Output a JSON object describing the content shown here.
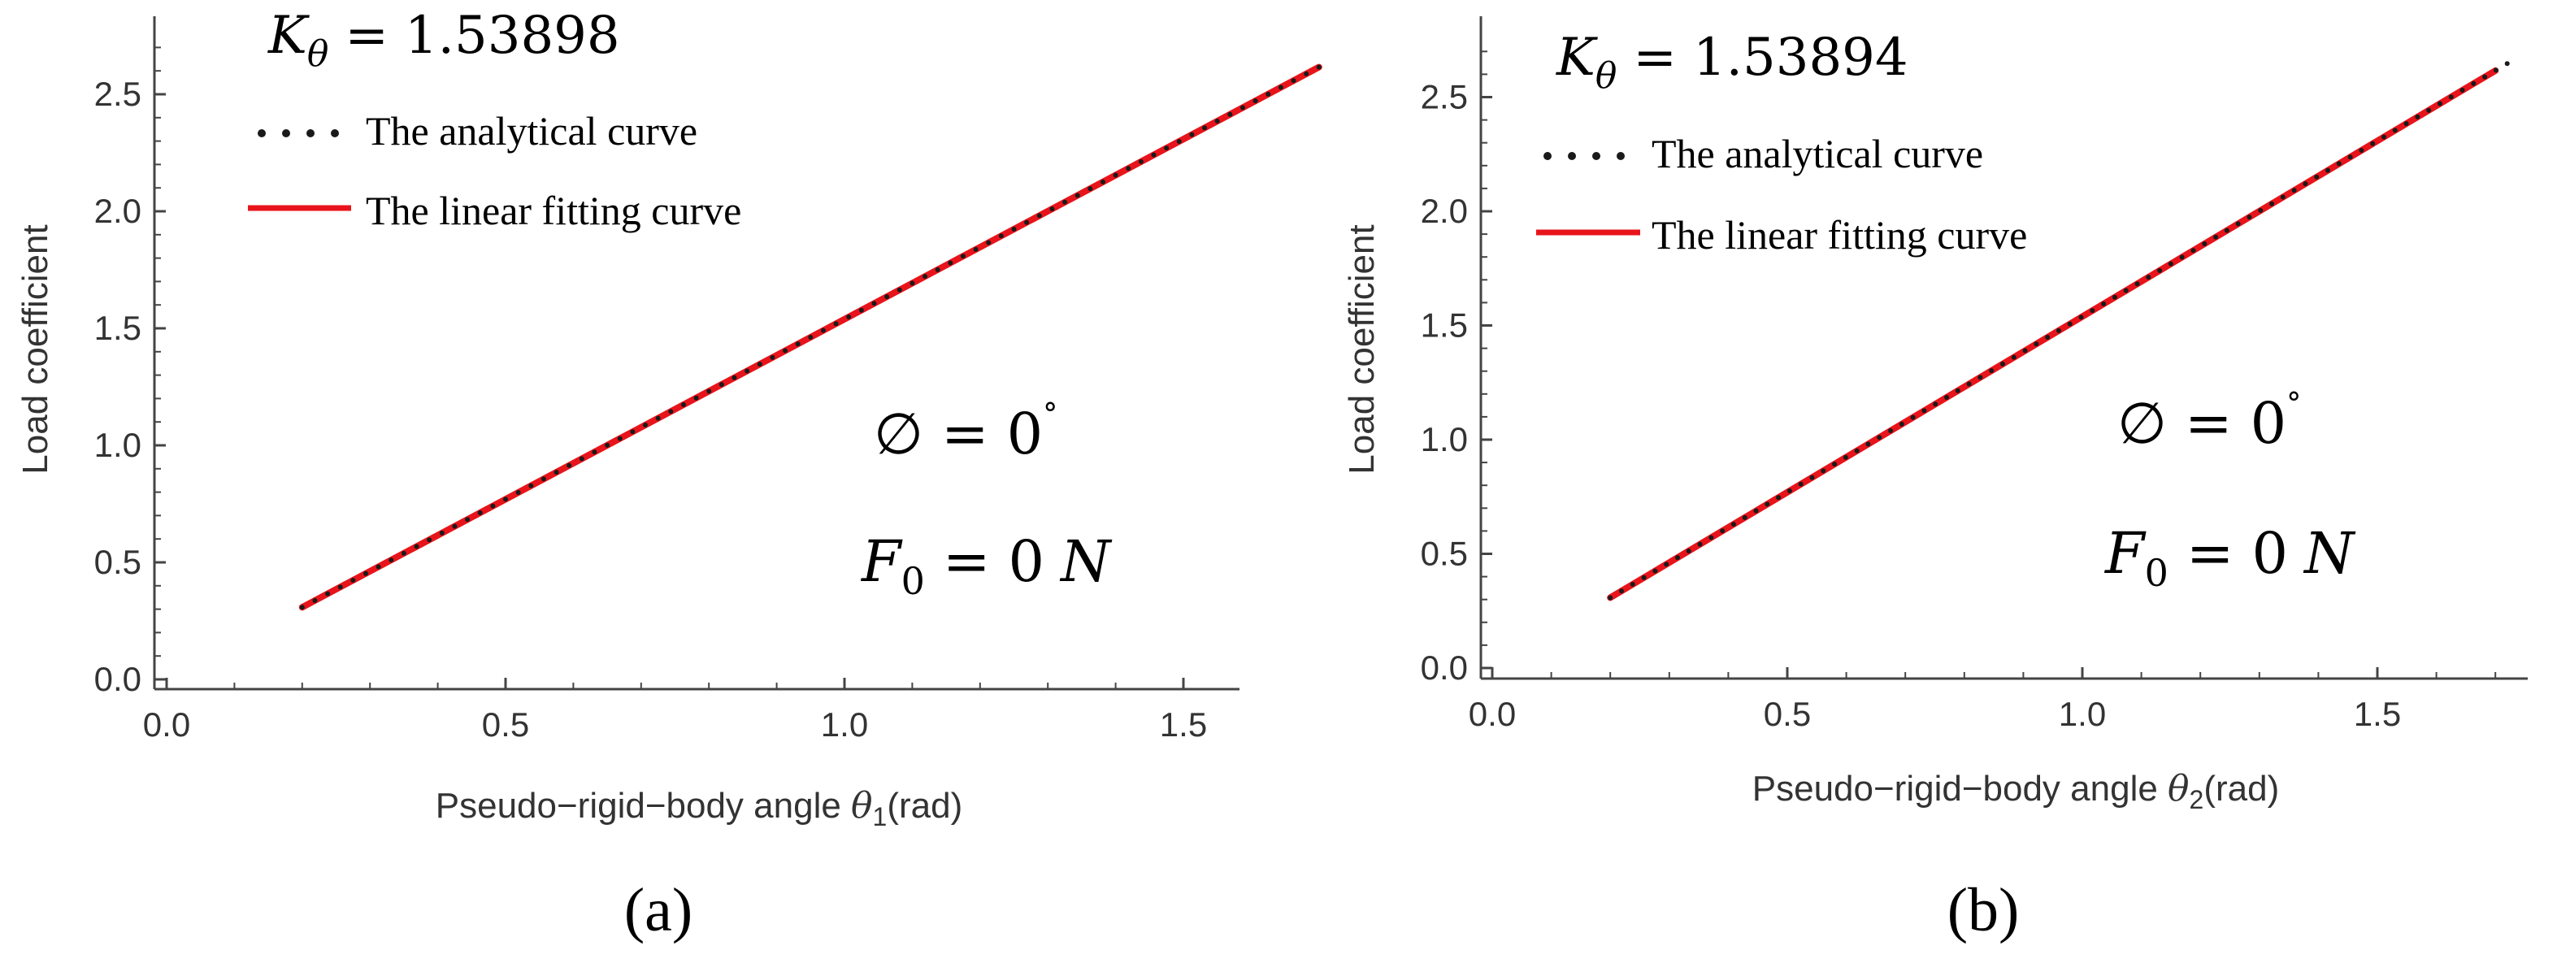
{
  "figure": {
    "panels": [
      {
        "id": "a",
        "caption": "(a)",
        "k_label": {
          "symbol": "K",
          "sub": "θ",
          "eq": "=",
          "value": "1.53898"
        },
        "phi_label": {
          "symbol": "∅",
          "eq": "=",
          "value": "0",
          "unit": "°"
        },
        "f_label": {
          "symbol": "F",
          "sub": "0",
          "eq": "=",
          "value": "0",
          "unit": "N"
        }
      },
      {
        "id": "b",
        "caption": "(b)",
        "k_label": {
          "symbol": "K",
          "sub": "θ",
          "eq": "=",
          "value": "1.53894"
        },
        "phi_label": {
          "symbol": "∅",
          "eq": "=",
          "value": "0",
          "unit": "°"
        },
        "f_label": {
          "symbol": "F",
          "sub": "0",
          "eq": "=",
          "value": "0",
          "unit": "N"
        }
      }
    ]
  },
  "chart_data": [
    {
      "type": "line",
      "title": "",
      "xlabel": "Pseudo-rigid-body angle θ₁(rad)",
      "xlabel_parts": {
        "pre": "Pseudo−rigid−body angle ",
        "sym": "θ",
        "sub": "1",
        "post": "(rad)"
      },
      "ylabel": "Load coefficient",
      "xlim": [
        -0.05,
        1.75
      ],
      "ylim": [
        -0.05,
        2.75
      ],
      "xticks": [
        "0.0",
        "0.5",
        "1.0",
        "1.5"
      ],
      "xtick_values": [
        0.0,
        0.5,
        1.0,
        1.5
      ],
      "yticks": [
        "0.0",
        "0.5",
        "1.0",
        "1.5",
        "2.0",
        "2.5"
      ],
      "ytick_values": [
        0.0,
        0.5,
        1.0,
        1.5,
        2.0,
        2.5
      ],
      "grid": false,
      "legend_position": "top-left",
      "series": [
        {
          "name": "The analytical curve",
          "style": "dotted",
          "color": "#1a1a1a",
          "x": [
            0.2,
            1.7
          ],
          "y": [
            0.308,
            2.616
          ],
          "points": 80
        },
        {
          "name": "The linear fitting curve",
          "style": "solid",
          "color": "#e8141b",
          "x": [
            0.2,
            1.7
          ],
          "y": [
            0.308,
            2.616
          ]
        }
      ]
    },
    {
      "type": "line",
      "title": "",
      "xlabel": "Pseudo-rigid-body angle θ₂(rad)",
      "xlabel_parts": {
        "pre": "Pseudo−rigid−body angle ",
        "sym": "θ",
        "sub": "2",
        "post": "(rad)"
      },
      "ylabel": "Load coefficient",
      "xlim": [
        -0.05,
        1.75
      ],
      "ylim": [
        -0.05,
        2.75
      ],
      "xticks": [
        "0.0",
        "0.5",
        "1.0",
        "1.5"
      ],
      "xtick_values": [
        0.0,
        0.5,
        1.0,
        1.5
      ],
      "yticks": [
        "0.0",
        "0.5",
        "1.0",
        "1.5",
        "2.0",
        "2.5"
      ],
      "ytick_values": [
        0.0,
        0.5,
        1.0,
        1.5,
        2.0,
        2.5
      ],
      "grid": false,
      "legend_position": "top-left",
      "series": [
        {
          "name": "The analytical curve",
          "style": "dotted",
          "color": "#1a1a1a",
          "x": [
            0.2,
            1.72
          ],
          "y": [
            0.308,
            2.647
          ],
          "points": 80
        },
        {
          "name": "The linear fitting curve",
          "style": "solid",
          "color": "#e8141b",
          "x": [
            0.2,
            1.7
          ],
          "y": [
            0.308,
            2.616
          ]
        }
      ]
    }
  ]
}
